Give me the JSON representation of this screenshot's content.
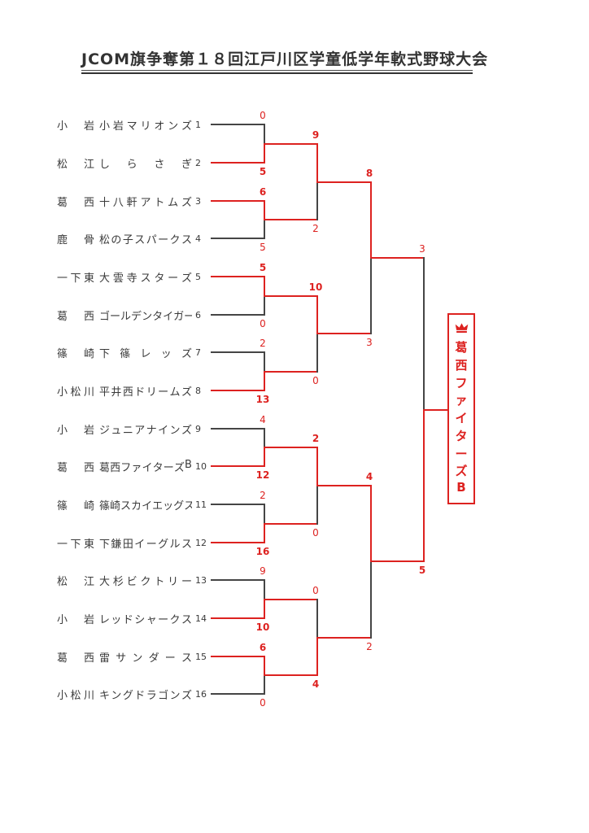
{
  "page_title": "JCOM旗争奪第１８回江戸川区学童低学年軟式野球大会",
  "colors": {
    "winner_line": "#dd2220",
    "loser_line": "#454545",
    "score_text": "#dd2220",
    "title_text": "#333333",
    "background": "#ffffff"
  },
  "teams": [
    {
      "region": "小岩",
      "name": "小岩マリオンズ",
      "seed": "1"
    },
    {
      "region": "松江",
      "name": "しらさぎ",
      "seed": "2"
    },
    {
      "region": "葛西",
      "name": "十八軒アトムズ",
      "seed": "3"
    },
    {
      "region": "鹿骨",
      "name": "松の子スパークス",
      "seed": "4"
    },
    {
      "region": "一下東",
      "name": "大雲寺スターズ",
      "seed": "5"
    },
    {
      "region": "葛西",
      "name": "ゴールデンタイガー",
      "seed": "6"
    },
    {
      "region": "篠崎",
      "name": "下篠レッズ",
      "seed": "7"
    },
    {
      "region": "小松川",
      "name": "平井西ドリームズ",
      "seed": "8"
    },
    {
      "region": "小岩",
      "name": "ジュニアナインズ",
      "seed": "9"
    },
    {
      "region": "葛西",
      "name": "葛西ファイターズB",
      "seed": "10"
    },
    {
      "region": "篠崎",
      "name": "篠崎スカイエッグス",
      "seed": "11"
    },
    {
      "region": "一下東",
      "name": "下鎌田イーグルス",
      "seed": "12"
    },
    {
      "region": "松江",
      "name": "大杉ビクトリー",
      "seed": "13"
    },
    {
      "region": "小岩",
      "name": "レッドシャークス",
      "seed": "14"
    },
    {
      "region": "葛西",
      "name": "雷サンダース",
      "seed": "15"
    },
    {
      "region": "小松川",
      "name": "キングドラゴンズ",
      "seed": "16"
    }
  ],
  "matches": {
    "round1": [
      {
        "top": "小岩マリオンズ",
        "top_score": "0",
        "bottom": "しらさぎ",
        "bottom_score": "5",
        "winner": "しらさぎ"
      },
      {
        "top": "十八軒アトムズ",
        "top_score": "6",
        "bottom": "松の子スパークス",
        "bottom_score": "5",
        "winner": "十八軒アトムズ"
      },
      {
        "top": "大雲寺スターズ",
        "top_score": "5",
        "bottom": "ゴールデンタイガー",
        "bottom_score": "0",
        "winner": "大雲寺スターズ"
      },
      {
        "top": "下篠レッズ",
        "top_score": "2",
        "bottom": "平井西ドリームズ",
        "bottom_score": "13",
        "winner": "平井西ドリームズ"
      },
      {
        "top": "ジュニアナインズ",
        "top_score": "4",
        "bottom": "葛西ファイターズB",
        "bottom_score": "12",
        "winner": "葛西ファイターズB"
      },
      {
        "top": "篠崎スカイエッグス",
        "top_score": "2",
        "bottom": "下鎌田イーグルス",
        "bottom_score": "16",
        "winner": "下鎌田イーグルス"
      },
      {
        "top": "大杉ビクトリー",
        "top_score": "9",
        "bottom": "レッドシャークス",
        "bottom_score": "10",
        "winner": "レッドシャークス"
      },
      {
        "top": "雷サンダース",
        "top_score": "6",
        "bottom": "キングドラゴンズ",
        "bottom_score": "0",
        "winner": "雷サンダース"
      }
    ],
    "round2": [
      {
        "top": "しらさぎ",
        "top_score": "9",
        "bottom": "十八軒アトムズ",
        "bottom_score": "2",
        "winner": "しらさぎ"
      },
      {
        "top": "大雲寺スターズ",
        "top_score": "10",
        "bottom": "平井西ドリームズ",
        "bottom_score": "0",
        "winner": "大雲寺スターズ"
      },
      {
        "top": "葛西ファイターズB",
        "top_score": "2",
        "bottom": "下鎌田イーグルス",
        "bottom_score": "0",
        "winner": "葛西ファイターズB"
      },
      {
        "top": "レッドシャークス",
        "top_score": "0",
        "bottom": "雷サンダース",
        "bottom_score": "4",
        "winner": "雷サンダース"
      }
    ],
    "semifinals": [
      {
        "top": "しらさぎ",
        "top_score": "8",
        "bottom": "大雲寺スターズ",
        "bottom_score": "3",
        "winner": "しらさぎ"
      },
      {
        "top": "葛西ファイターズB",
        "top_score": "4",
        "bottom": "雷サンダース",
        "bottom_score": "2",
        "winner": "葛西ファイターズB"
      }
    ],
    "final": {
      "top": "しらさぎ",
      "top_score": "3",
      "bottom": "葛西ファイターズB",
      "bottom_score": "5",
      "winner": "葛西ファイターズB"
    }
  },
  "champion": {
    "label": "葛西ファイターズB"
  }
}
